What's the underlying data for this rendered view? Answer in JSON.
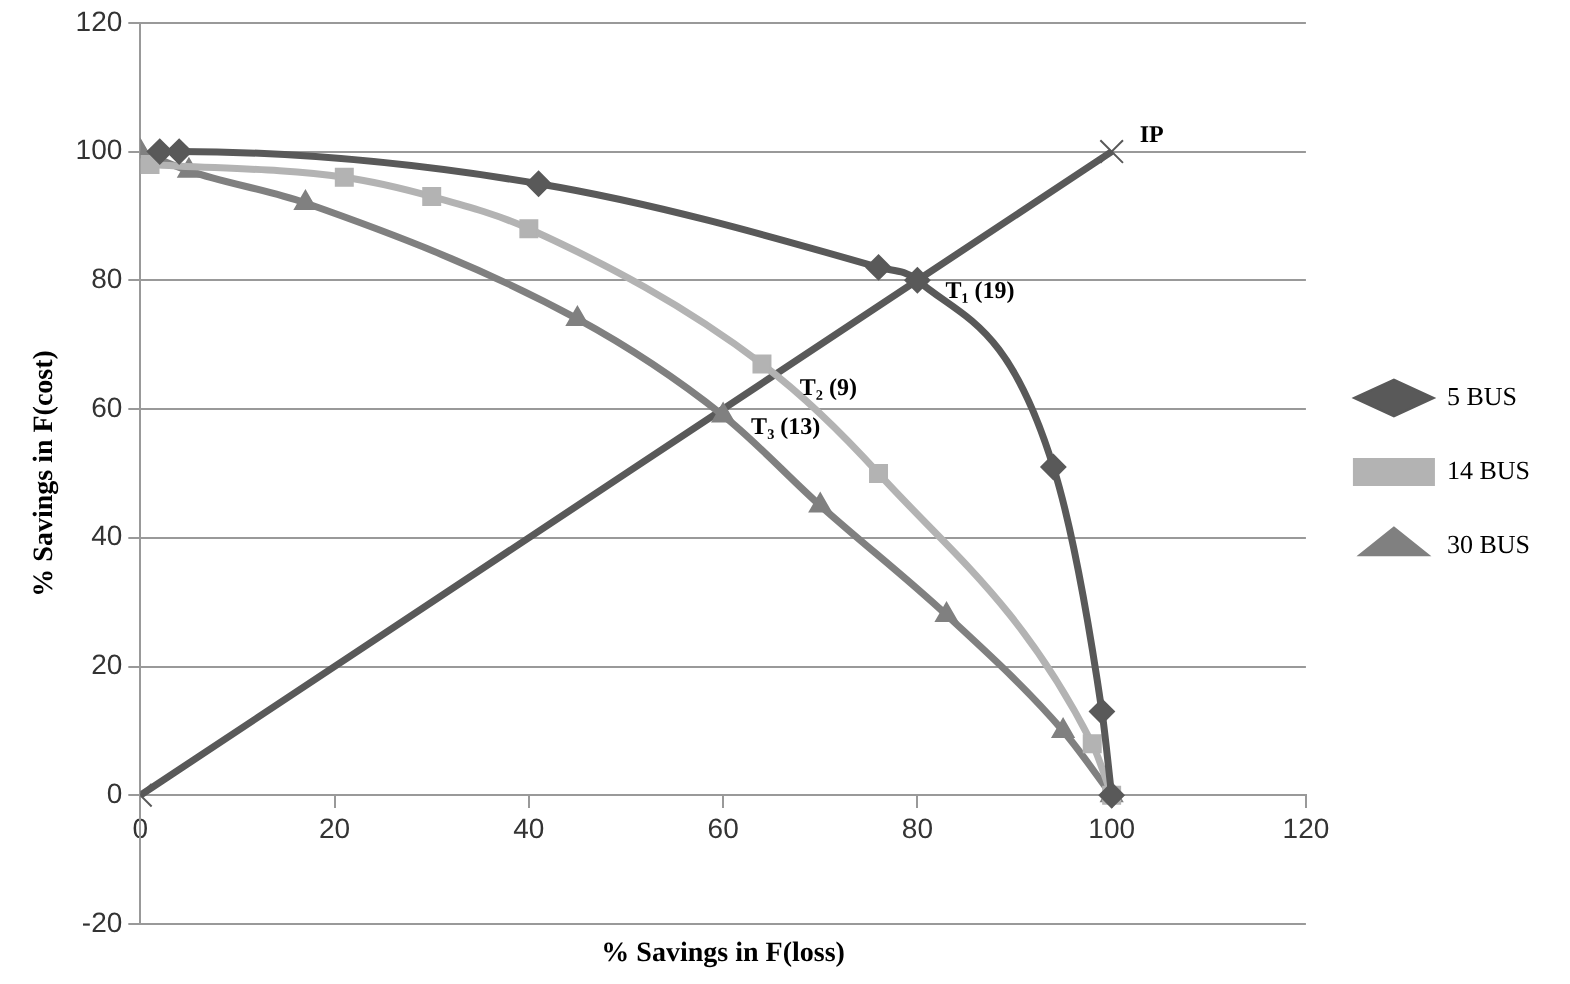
{
  "chart_data": {
    "type": "line",
    "xlabel": "% Savings in F(loss)",
    "ylabel": "% Savings in F(cost)",
    "xlim": [
      0,
      120
    ],
    "xticks": [
      0,
      20,
      40,
      60,
      80,
      100,
      120
    ],
    "ylim": [
      -20,
      120
    ],
    "yticks": [
      -20,
      0,
      20,
      40,
      60,
      80,
      100,
      120
    ],
    "grid": "y",
    "legend": "right",
    "series": [
      {
        "name": "5 BUS",
        "color": "#595959",
        "marker": "diamond",
        "x": [
          2,
          4,
          41,
          76,
          80,
          94,
          99,
          100
        ],
        "values": [
          100,
          100,
          95,
          82,
          80,
          51,
          13,
          0
        ]
      },
      {
        "name": "14 BUS",
        "color": "#b3b3b3",
        "marker": "square",
        "x": [
          1,
          21,
          30,
          40,
          64,
          76,
          98,
          100
        ],
        "values": [
          98,
          96,
          93,
          88,
          67,
          50,
          8,
          0
        ]
      },
      {
        "name": "30 BUS",
        "color": "#808080",
        "marker": "triangle",
        "x": [
          0,
          5,
          17,
          45,
          60,
          70,
          83,
          95,
          100
        ],
        "values": [
          100,
          97,
          92,
          74,
          59,
          45,
          28,
          10,
          0
        ]
      },
      {
        "color": "#595959",
        "marker": "cross",
        "x": [
          0,
          100
        ],
        "values": [
          0,
          100
        ]
      }
    ],
    "annotations": [
      {
        "text": "IP",
        "x": 100,
        "y": 100
      },
      {
        "text": "T₁ (19)",
        "x": 80,
        "y": 80
      },
      {
        "text": "T₂ (9)",
        "x": 65,
        "y": 65
      },
      {
        "text": "T₃ (13)",
        "x": 60,
        "y": 59
      }
    ]
  }
}
